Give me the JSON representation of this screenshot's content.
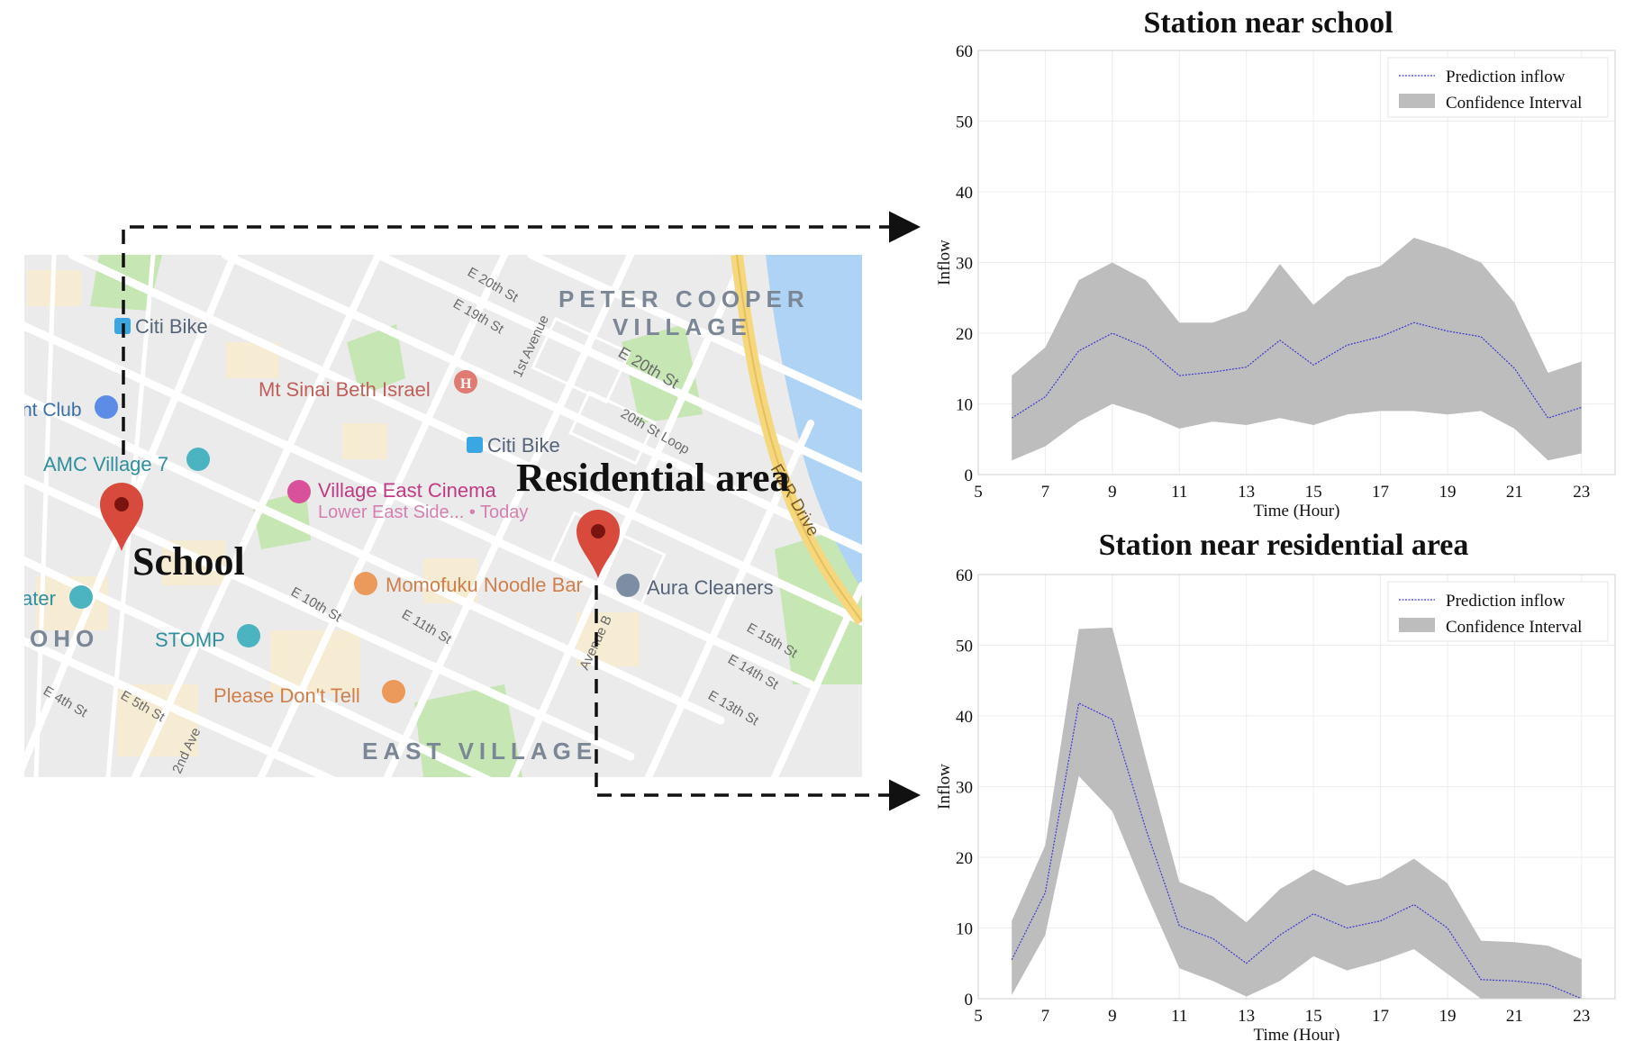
{
  "map": {
    "labels": {
      "school": "School",
      "residential": "Residential area"
    },
    "neighborhoods": {
      "peter_cooper_1": "PETER COOPER",
      "peter_cooper_2": "VILLAGE",
      "east_village": "EAST VILLAGE",
      "soho": "OHO"
    },
    "pois": {
      "citi_bike_1": "Citi Bike",
      "citi_bike_2": "Citi Bike",
      "mt_sinai": "Mt Sinai Beth Israel",
      "club": "nt Club",
      "amc": "AMC Village 7",
      "village_east": "Village East Cinema",
      "village_east_sub": "Lower East Side... • Today",
      "momofuku": "Momofuku Noodle Bar",
      "aura": "Aura Cleaners",
      "theater": "ater",
      "stomp": "STOMP",
      "please_dont_tell": "Please Don't Tell"
    },
    "streets": {
      "e20th_a": "E 20th St",
      "e19th": "E 19th St",
      "first_ave": "1st Avenue",
      "e20th_b": "E 20th St",
      "loop": "20th St Loop",
      "fdr": "FDR Drive",
      "e10th": "E 10th St",
      "e11th": "E 11th St",
      "ave_b": "Avenue B",
      "e15th": "E 15th St",
      "e14th": "E 14th St",
      "e13th": "E 13th St",
      "e4th": "E 4th St",
      "e5th": "E 5th St",
      "second_ave": "2nd Ave"
    },
    "colors": {
      "land": "#ebebeb",
      "road": "#ffffff",
      "park": "#c6e6b4",
      "water": "#aed3f4",
      "highway": "#f5d77e",
      "pin": "#d84a3c"
    }
  },
  "chart_data": [
    {
      "type": "area",
      "title": "Station near school",
      "xlabel": "Time (Hour)",
      "ylabel": "Inflow",
      "xlim": [
        5,
        24
      ],
      "ylim": [
        0,
        60
      ],
      "xticks": [
        5,
        7,
        9,
        11,
        13,
        15,
        17,
        19,
        21,
        23
      ],
      "yticks": [
        0,
        10,
        20,
        30,
        40,
        50,
        60
      ],
      "grid": true,
      "legend": {
        "placement": "top-right",
        "entries": [
          "Prediction inflow",
          "Confidence Interval"
        ]
      },
      "x": [
        6,
        7,
        8,
        9,
        10,
        11,
        12,
        13,
        14,
        15,
        16,
        17,
        18,
        19,
        20,
        21,
        22,
        23
      ],
      "series": [
        {
          "name": "Prediction inflow",
          "values": [
            8,
            11,
            17.5,
            20,
            18,
            14,
            14.5,
            15.2,
            19,
            15.5,
            18.3,
            19.5,
            21.5,
            20.3,
            19.5,
            15,
            8,
            9.5
          ]
        },
        {
          "name": "Confidence Interval",
          "lower": [
            2,
            4,
            7.5,
            10,
            8.5,
            6.5,
            7.5,
            7,
            8,
            7,
            8.5,
            9,
            9,
            8.5,
            9,
            6.5,
            2,
            3
          ],
          "upper": [
            14,
            18,
            27.5,
            30,
            27.5,
            21.5,
            21.5,
            23.2,
            29.8,
            24,
            28,
            29.5,
            33.5,
            32,
            30,
            24.3,
            14.4,
            16
          ]
        }
      ],
      "colors": {
        "line": "#3b3bd1",
        "band": "#bdbdbd"
      }
    },
    {
      "type": "area",
      "title": "Station near residential area",
      "xlabel": "Time (Hour)",
      "ylabel": "Inflow",
      "xlim": [
        5,
        24
      ],
      "ylim": [
        0,
        60
      ],
      "xticks": [
        5,
        7,
        9,
        11,
        13,
        15,
        17,
        19,
        21,
        23
      ],
      "yticks": [
        0,
        10,
        20,
        30,
        40,
        50,
        60
      ],
      "grid": true,
      "legend": {
        "placement": "top-right",
        "entries": [
          "Prediction inflow",
          "Confidence Interval"
        ]
      },
      "x": [
        6,
        7,
        8,
        9,
        10,
        11,
        12,
        13,
        14,
        15,
        16,
        17,
        18,
        19,
        20,
        21,
        22,
        23
      ],
      "series": [
        {
          "name": "Prediction inflow",
          "values": [
            5.5,
            15,
            41.8,
            39.5,
            24,
            10.3,
            8.5,
            5,
            9,
            12,
            10,
            11,
            13.3,
            10,
            2.7,
            2.5,
            2,
            0
          ]
        },
        {
          "name": "Confidence Interval",
          "lower": [
            0.5,
            9,
            31.5,
            26.5,
            15,
            4.3,
            2.5,
            0.3,
            2.5,
            6,
            4,
            5.3,
            7,
            3.5,
            0,
            0,
            0,
            0
          ],
          "upper": [
            11,
            21.7,
            52.3,
            52.5,
            34,
            16.5,
            14.5,
            10.8,
            15.5,
            18.3,
            16,
            17,
            19.8,
            16.3,
            8.2,
            8,
            7.5,
            5.6
          ]
        }
      ],
      "colors": {
        "line": "#3b3bd1",
        "band": "#bdbdbd"
      }
    }
  ]
}
